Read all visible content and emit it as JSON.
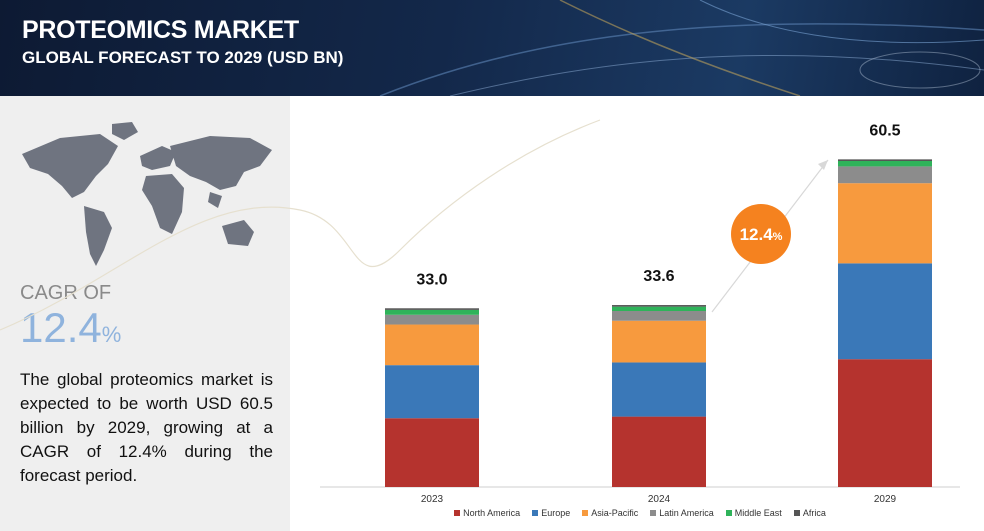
{
  "header": {
    "title": "PROTEOMICS MARKET",
    "subtitle": "GLOBAL FORECAST TO 2029 (USD BN)"
  },
  "sidebar": {
    "cagr_label": "CAGR OF",
    "cagr_value": "12.4",
    "cagr_unit": "%",
    "description": "The global proteomics market is expected to be worth USD 60.5 billion by 2029, growing at a CAGR of 12.4% during the forecast period."
  },
  "chart_data": {
    "type": "stacked_bar",
    "categories": [
      "2023",
      "2024",
      "2029"
    ],
    "series": [
      {
        "name": "North America",
        "color": "#b5332e",
        "values": [
          12.7,
          13.0,
          23.6
        ]
      },
      {
        "name": "Europe",
        "color": "#3a78b8",
        "values": [
          9.8,
          10.0,
          17.7
        ]
      },
      {
        "name": "Asia-Pacific",
        "color": "#f79a3e",
        "values": [
          7.5,
          7.7,
          14.8
        ]
      },
      {
        "name": "Latin America",
        "color": "#8c8c8c",
        "values": [
          1.8,
          1.8,
          3.1
        ]
      },
      {
        "name": "Middle East",
        "color": "#2fb35a",
        "values": [
          0.9,
          0.8,
          1.0
        ]
      },
      {
        "name": "Africa",
        "color": "#555555",
        "values": [
          0.3,
          0.3,
          0.3
        ]
      }
    ],
    "totals": [
      33.0,
      33.6,
      60.5
    ],
    "total_labels": [
      "33.0",
      "33.6",
      "60.5"
    ],
    "ylim": [
      0,
      65
    ],
    "callout": {
      "value": "12.4",
      "unit": "%"
    }
  }
}
